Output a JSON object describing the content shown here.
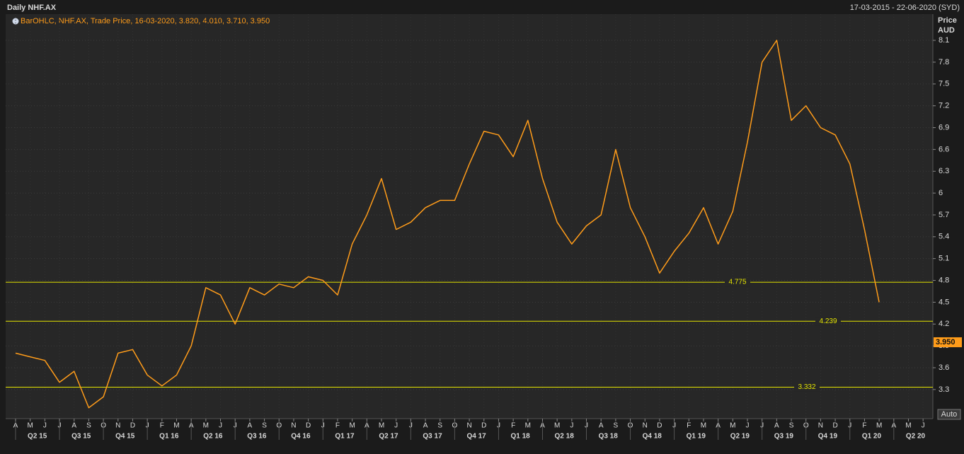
{
  "header": {
    "title": "Daily NHF.AX",
    "date_range": "17-03-2015 - 22-06-2020 (SYD)",
    "legend": "BarOHLC, NHF.AX, Trade Price, 16-03-2020, 3.820, 4.010, 3.710, 3.950",
    "axis_title": "Price",
    "axis_unit": "AUD",
    "scale_button": "Auto"
  },
  "chart_data": {
    "type": "line",
    "categories": [
      "A",
      "M",
      "J",
      "J",
      "A",
      "S",
      "O",
      "N",
      "D",
      "J",
      "F",
      "M",
      "A",
      "M",
      "J",
      "J",
      "A",
      "S",
      "O",
      "N",
      "D",
      "J",
      "F",
      "M",
      "A",
      "M",
      "J",
      "J",
      "A",
      "S",
      "O",
      "N",
      "D",
      "J",
      "F",
      "M",
      "A",
      "M",
      "J",
      "J",
      "A",
      "S",
      "O",
      "N",
      "D",
      "J",
      "F",
      "M",
      "A",
      "M",
      "J",
      "J",
      "A",
      "S",
      "O",
      "N",
      "D",
      "J",
      "F",
      "M",
      "A",
      "M",
      "J"
    ],
    "quarters": [
      "Q2 15",
      "Q3 15",
      "Q4 15",
      "Q1 16",
      "Q2 16",
      "Q3 16",
      "Q4 16",
      "Q1 17",
      "Q2 17",
      "Q3 17",
      "Q4 17",
      "Q1 18",
      "Q2 18",
      "Q3 18",
      "Q4 18",
      "Q1 19",
      "Q2 19",
      "Q3 19",
      "Q4 19",
      "Q1 20",
      "Q2 20"
    ],
    "values": [
      3.8,
      3.75,
      3.7,
      3.4,
      3.55,
      3.05,
      3.2,
      3.8,
      3.85,
      3.5,
      3.35,
      3.5,
      3.9,
      4.7,
      4.6,
      4.2,
      4.7,
      4.6,
      4.75,
      4.7,
      4.85,
      4.8,
      4.6,
      5.3,
      5.7,
      6.2,
      5.5,
      5.6,
      5.8,
      5.9,
      5.9,
      6.4,
      6.85,
      6.8,
      6.5,
      7.0,
      6.2,
      5.6,
      5.3,
      5.55,
      5.7,
      6.6,
      5.8,
      5.4,
      4.9,
      5.2,
      5.45,
      5.8,
      5.3,
      5.75,
      6.7,
      7.8,
      8.1,
      7.0,
      7.2,
      6.9,
      6.8,
      6.4,
      5.5,
      4.5,
      null,
      null,
      null
    ],
    "color": "#ff9c1a",
    "ylim": [
      2.9,
      8.46
    ],
    "yticks": [
      3.3,
      3.6,
      3.9,
      4.2,
      4.5,
      4.8,
      5.1,
      5.4,
      5.7,
      6,
      6.3,
      6.6,
      6.9,
      7.2,
      7.5,
      7.8,
      8.1
    ],
    "grid": true,
    "last_price": {
      "value": 3.95,
      "label": "3.950"
    },
    "levels": [
      4.775,
      4.239,
      3.332
    ],
    "level_color": "#e6e600"
  }
}
